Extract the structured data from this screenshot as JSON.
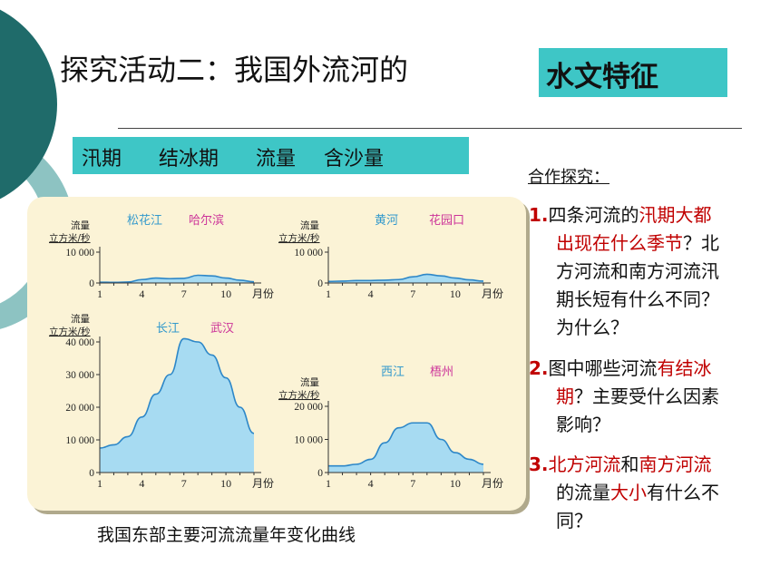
{
  "title": {
    "main": "探究活动二：我国外流河的",
    "highlight": "水文特征"
  },
  "tags": [
    "汛期",
    "结冰期",
    "流量",
    "含沙量"
  ],
  "caption": "我国东部主要河流流量年变化曲线",
  "questions": {
    "heading": "合作探究：",
    "q1": {
      "num": "1.",
      "p1": "四条河流的",
      "p2_red": "汛期大都",
      "p3_red": "出现在什么季节",
      "p4": "？北",
      "p5": "方河流和南方河流汛",
      "p6": "期长短有什么不同？",
      "p7": "为什么？"
    },
    "q2": {
      "num": "2.",
      "p1": "图中哪些河流",
      "p2_red": "有结冰",
      "p3_red": "期",
      "p4": "？主要受什么因素",
      "p5": "影响？"
    },
    "q3": {
      "num": "3.",
      "p1_red": "北方河流",
      "p2": "和",
      "p3_red": "南方河流",
      "p4": "的流量",
      "p5_red": "大小",
      "p6": "有什么不",
      "p7": "同？"
    }
  },
  "colors": {
    "teal": "#3ec6c6",
    "dark_teal": "#1f6b6a",
    "light_teal": "#8dc3c2",
    "panel_bg": "#fbf3d6",
    "fill": "#a7dbf2",
    "river_name": "#3399cc",
    "station_name": "#cc3399",
    "question_red": "#c00000"
  },
  "chart_data": [
    {
      "type": "area",
      "river": "松花江",
      "station": "哈尔滨",
      "ylabel_line1": "流量",
      "ylabel_line2": "立方米/秒",
      "xlabel": "月份",
      "x_ticks": [
        "1",
        "4",
        "7",
        "10"
      ],
      "y_ticks": [
        "0",
        "10 000"
      ],
      "ylim": [
        0,
        10000
      ],
      "x": [
        1,
        2,
        3,
        4,
        5,
        6,
        7,
        8,
        9,
        10,
        11,
        12
      ],
      "values": [
        250,
        200,
        300,
        1100,
        1600,
        1400,
        1500,
        2500,
        2300,
        1600,
        900,
        400
      ]
    },
    {
      "type": "area",
      "river": "黄河",
      "station": "花园口",
      "ylabel_line1": "流量",
      "ylabel_line2": "立方米/秒",
      "xlabel": "月份",
      "x_ticks": [
        "1",
        "4",
        "7",
        "10"
      ],
      "y_ticks": [
        "0",
        "10 000"
      ],
      "ylim": [
        0,
        10000
      ],
      "x": [
        1,
        2,
        3,
        4,
        5,
        6,
        7,
        8,
        9,
        10,
        11,
        12
      ],
      "values": [
        500,
        600,
        800,
        800,
        900,
        1100,
        2000,
        2800,
        2300,
        1600,
        1000,
        600
      ]
    },
    {
      "type": "area",
      "river": "长江",
      "station": "武汉",
      "ylabel_line1": "流量",
      "ylabel_line2": "立方米/秒",
      "xlabel": "月份",
      "x_ticks": [
        "1",
        "4",
        "7",
        "10"
      ],
      "y_ticks": [
        "0",
        "10 000",
        "20 000",
        "30 000",
        "40 000"
      ],
      "ylim": [
        0,
        40000
      ],
      "x": [
        1,
        2,
        3,
        4,
        5,
        6,
        7,
        8,
        9,
        10,
        11,
        12
      ],
      "values": [
        7500,
        8500,
        11000,
        17000,
        24000,
        30000,
        41000,
        40000,
        36000,
        29000,
        20000,
        12000
      ]
    },
    {
      "type": "area",
      "river": "西江",
      "station": "梧州",
      "ylabel_line1": "流量",
      "ylabel_line2": "立方米/秒",
      "xlabel": "月份",
      "x_ticks": [
        "1",
        "4",
        "7",
        "10"
      ],
      "y_ticks": [
        "0",
        "10 000",
        "20 000"
      ],
      "ylim": [
        0,
        20000
      ],
      "x": [
        1,
        2,
        3,
        4,
        5,
        6,
        7,
        8,
        9,
        10,
        11,
        12
      ],
      "values": [
        2000,
        2000,
        2500,
        4000,
        9000,
        13500,
        15000,
        15000,
        10000,
        6000,
        4000,
        2500
      ]
    }
  ]
}
